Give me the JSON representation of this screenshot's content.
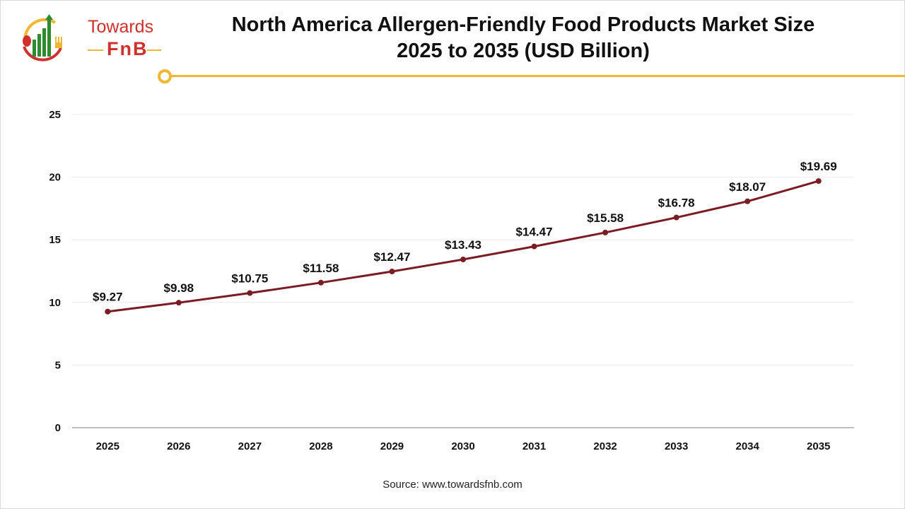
{
  "brand": {
    "name_line1": "Towards",
    "name_line2": "FnB",
    "colors": {
      "red": "#d0312d",
      "green": "#2e8b2e",
      "yellow": "#f2b632"
    }
  },
  "source": "Source: www.towardsfnb.com",
  "chart_data": {
    "type": "line",
    "title": "North America Allergen-Friendly Food Products Market Size 2025 to 2035 (USD Billion)",
    "title_line1": "North America Allergen-Friendly Food Products Market Size",
    "title_line2": "2025 to 2035 (USD Billion)",
    "xlabel": "",
    "ylabel": "",
    "categories": [
      "2025",
      "2026",
      "2027",
      "2028",
      "2029",
      "2030",
      "2031",
      "2032",
      "2033",
      "2034",
      "2035"
    ],
    "values": [
      9.27,
      9.98,
      10.75,
      11.58,
      12.47,
      13.43,
      14.47,
      15.58,
      16.78,
      18.07,
      19.69
    ],
    "data_labels": [
      "$9.27",
      "$9.98",
      "$10.75",
      "$11.58",
      "$12.47",
      "$13.43",
      "$14.47",
      "$15.58",
      "$16.78",
      "$18.07",
      "$19.69"
    ],
    "ylim": [
      0,
      25
    ],
    "yticks": [
      0,
      5,
      10,
      15,
      20,
      25
    ],
    "grid": true,
    "legend": "none",
    "line_color": "#7b1c24"
  }
}
